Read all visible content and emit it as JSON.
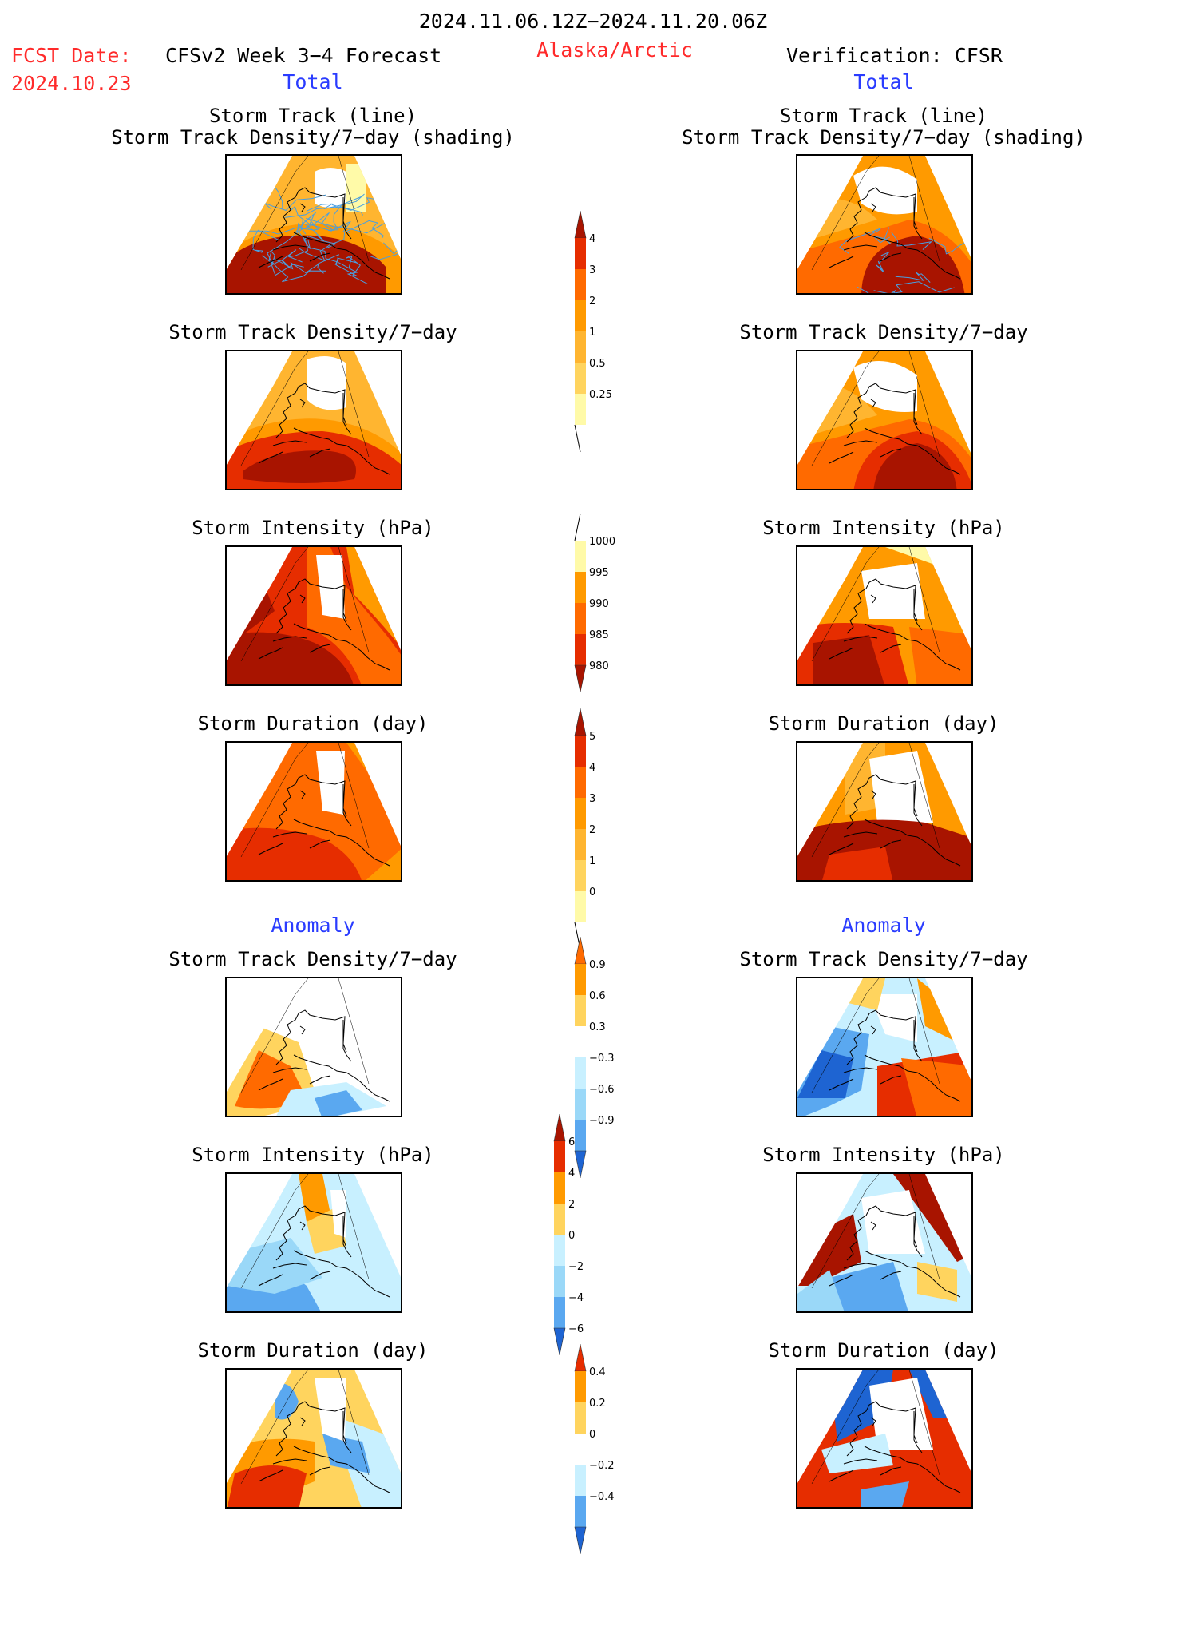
{
  "header": {
    "date_range": "2024.11.06.12Z−2024.11.20.06Z",
    "fcst_label": "FCST Date:",
    "fcst_date": "2024.10.23",
    "left_title": "CFSv2 Week 3−4 Forecast",
    "region": "Alaska/Arctic",
    "right_title": "Verification: CFSR",
    "total_left": "Total",
    "total_right": "Total",
    "anomaly_left": "Anomaly",
    "anomaly_right": "Anomaly"
  },
  "panels": {
    "p1_line1": "Storm Track (line)",
    "p1_line2": "Storm Track Density/7−day (shading)",
    "p2": "Storm Track Density/7−day",
    "p3": "Storm Intensity (hPa)",
    "p4": "Storm Duration (day)",
    "p5": "Storm Track Density/7−day",
    "p6": "Storm Intensity (hPa)",
    "p7": "Storm Duration (day)"
  },
  "colors": {
    "lightyellow": "#fffaa8",
    "yellow": "#ffd45e",
    "lightorange": "#ffb530",
    "orange": "#ff9a00",
    "darkorange": "#ff6a00",
    "red": "#e62d00",
    "darkred": "#a81400",
    "white": "#ffffff",
    "lightblue": "#c8f0ff",
    "skyblue": "#9ad8f8",
    "blue": "#5aa8f0",
    "darkblue": "#1e64d2",
    "track": "#4a9fe0"
  },
  "chart_data": [
    {
      "type": "heatmap",
      "title": "Storm Track Density/7−day total colorbar",
      "levels": [
        "4",
        "3",
        "2",
        "1",
        "0.5",
        "0.25"
      ]
    },
    {
      "type": "heatmap",
      "title": "Storm Intensity (hPa) total colorbar",
      "levels": [
        "1000",
        "995",
        "990",
        "985",
        "980"
      ]
    },
    {
      "type": "heatmap",
      "title": "Storm Duration (day) total colorbar",
      "levels": [
        "5",
        "4",
        "3",
        "2",
        "1",
        "0"
      ]
    },
    {
      "type": "heatmap",
      "title": "Storm Track Density anomaly colorbar",
      "levels": [
        "0.9",
        "0.6",
        "0.3",
        "−0.3",
        "−0.6",
        "−0.9"
      ]
    },
    {
      "type": "heatmap",
      "title": "Storm Intensity anomaly colorbar",
      "levels": [
        "6",
        "4",
        "2",
        "0",
        "−2",
        "−4",
        "−6"
      ]
    },
    {
      "type": "heatmap",
      "title": "Storm Duration anomaly colorbar",
      "levels": [
        "0.4",
        "0.2",
        "0",
        "−0.2",
        "−0.4"
      ]
    }
  ]
}
